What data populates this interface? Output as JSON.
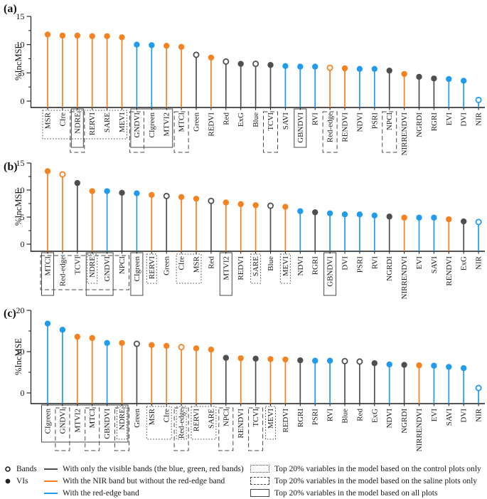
{
  "colors": {
    "visible": "#4F4F51",
    "nir": "#F58220",
    "rededge": "#219BEB",
    "axis": "#1a1a1a",
    "box_stroke": "#4a4a4a"
  },
  "legend": {
    "marker_items": [
      {
        "label": "Bands",
        "marker": "open"
      },
      {
        "label": "VIs",
        "marker": "filled"
      }
    ],
    "line_items": [
      {
        "label": "With only the visible bands (the blue, green, red bands)",
        "color_key": "visible"
      },
      {
        "label": "With the NIR band but without the red-edge band",
        "color_key": "nir"
      },
      {
        "label": "With the red-edge band",
        "color_key": "rededge"
      }
    ],
    "box_items": [
      {
        "label": "Top 20% variables in the model based on the control plots only",
        "style": "dotted"
      },
      {
        "label": "Top 20% variables in the model based on the saline plots only",
        "style": "dashed"
      },
      {
        "label": "Top 20% variables in the model based on all plots",
        "style": "solid"
      }
    ]
  },
  "chart_data": [
    {
      "type": "lollipop",
      "panel_label": "(a)",
      "ylabel": "%IncMSE",
      "ylim": [
        0,
        15
      ],
      "yticks": [
        0,
        5,
        10,
        15
      ],
      "yticks_minor": [
        2.5,
        7.5,
        12.5
      ],
      "items": [
        {
          "label": "MSR",
          "value": 11.8,
          "group": "nir",
          "marker": "filled"
        },
        {
          "label": "CIre",
          "value": 11.6,
          "group": "nir",
          "marker": "filled"
        },
        {
          "label": "NDRE",
          "value": 11.6,
          "group": "nir",
          "marker": "filled"
        },
        {
          "label": "RERVI",
          "value": 11.5,
          "group": "nir",
          "marker": "filled"
        },
        {
          "label": "SARE",
          "value": 11.5,
          "group": "nir",
          "marker": "filled"
        },
        {
          "label": "MEVI",
          "value": 11.3,
          "group": "nir",
          "marker": "filled"
        },
        {
          "label": "GNDVI",
          "value": 10.0,
          "group": "rededge",
          "marker": "filled"
        },
        {
          "label": "CIgreen",
          "value": 9.9,
          "group": "rededge",
          "marker": "filled"
        },
        {
          "label": "MTVI2",
          "value": 9.8,
          "group": "nir",
          "marker": "filled"
        },
        {
          "label": "MTCI",
          "value": 9.6,
          "group": "nir",
          "marker": "filled"
        },
        {
          "label": "Green",
          "value": 8.2,
          "group": "visible",
          "marker": "open"
        },
        {
          "label": "REDVI",
          "value": 7.7,
          "group": "nir",
          "marker": "filled"
        },
        {
          "label": "Red",
          "value": 7.0,
          "group": "visible",
          "marker": "open"
        },
        {
          "label": "ExG",
          "value": 6.6,
          "group": "visible",
          "marker": "filled"
        },
        {
          "label": "Blue",
          "value": 6.6,
          "group": "visible",
          "marker": "open"
        },
        {
          "label": "TCVI",
          "value": 6.4,
          "group": "visible",
          "marker": "filled"
        },
        {
          "label": "SAVI",
          "value": 6.2,
          "group": "rededge",
          "marker": "filled"
        },
        {
          "label": "GBNDVI",
          "value": 6.1,
          "group": "rededge",
          "marker": "filled"
        },
        {
          "label": "RVI",
          "value": 6.1,
          "group": "rededge",
          "marker": "filled"
        },
        {
          "label": "Red-edge",
          "value": 5.9,
          "group": "nir",
          "marker": "open"
        },
        {
          "label": "RENDVI",
          "value": 5.8,
          "group": "nir",
          "marker": "filled"
        },
        {
          "label": "NDVI",
          "value": 5.7,
          "group": "rededge",
          "marker": "filled"
        },
        {
          "label": "PSRI",
          "value": 5.7,
          "group": "rededge",
          "marker": "filled"
        },
        {
          "label": "NPCI",
          "value": 5.4,
          "group": "visible",
          "marker": "filled"
        },
        {
          "label": "NIRRENDVI",
          "value": 4.8,
          "group": "nir",
          "marker": "filled"
        },
        {
          "label": "NGRDI",
          "value": 4.3,
          "group": "visible",
          "marker": "filled"
        },
        {
          "label": "RGRI",
          "value": 4.0,
          "group": "visible",
          "marker": "filled"
        },
        {
          "label": "EVI",
          "value": 3.9,
          "group": "rededge",
          "marker": "filled"
        },
        {
          "label": "DVI",
          "value": 3.6,
          "group": "rededge",
          "marker": "filled"
        },
        {
          "label": "NIR",
          "value": 0.2,
          "group": "rededge",
          "marker": "open"
        }
      ],
      "top20_boxes": [
        {
          "style": "dotted",
          "from": 0,
          "to": 5
        },
        {
          "style": "solid",
          "from": 2,
          "to": 2
        },
        {
          "style": "dashed",
          "from": 2,
          "to": 2
        },
        {
          "style": "solid",
          "from": 6,
          "to": 8
        },
        {
          "style": "dashed",
          "from": 6,
          "to": 6
        },
        {
          "style": "dashed",
          "from": 9,
          "to": 9
        },
        {
          "style": "dashed",
          "from": 15,
          "to": 15
        },
        {
          "style": "solid",
          "from": 17,
          "to": 17
        },
        {
          "style": "dashed",
          "from": 19,
          "to": 19
        },
        {
          "style": "dashed",
          "from": 23,
          "to": 23
        }
      ]
    },
    {
      "type": "lollipop",
      "panel_label": "(b)",
      "ylabel": "%IncMSE",
      "ylim": [
        0,
        15
      ],
      "yticks": [
        0,
        5,
        10,
        15
      ],
      "yticks_minor": [
        2.5,
        7.5,
        12.5
      ],
      "items": [
        {
          "label": "MTCI",
          "value": 13.5,
          "group": "nir",
          "marker": "filled"
        },
        {
          "label": "Red-edge",
          "value": 12.9,
          "group": "nir",
          "marker": "open"
        },
        {
          "label": "TCVI",
          "value": 11.3,
          "group": "visible",
          "marker": "filled"
        },
        {
          "label": "NDRE",
          "value": 9.8,
          "group": "nir",
          "marker": "filled"
        },
        {
          "label": "GNDVI",
          "value": 9.8,
          "group": "rededge",
          "marker": "filled"
        },
        {
          "label": "NPCI",
          "value": 9.5,
          "group": "visible",
          "marker": "filled"
        },
        {
          "label": "CIgreen",
          "value": 9.4,
          "group": "rededge",
          "marker": "filled"
        },
        {
          "label": "RERVI",
          "value": 9.1,
          "group": "nir",
          "marker": "filled"
        },
        {
          "label": "Green",
          "value": 8.9,
          "group": "visible",
          "marker": "open"
        },
        {
          "label": "CIre",
          "value": 8.7,
          "group": "nir",
          "marker": "filled"
        },
        {
          "label": "MSR",
          "value": 8.4,
          "group": "nir",
          "marker": "filled"
        },
        {
          "label": "Red",
          "value": 8.0,
          "group": "visible",
          "marker": "open"
        },
        {
          "label": "MTVI2",
          "value": 7.7,
          "group": "nir",
          "marker": "filled"
        },
        {
          "label": "REDVI",
          "value": 7.4,
          "group": "nir",
          "marker": "filled"
        },
        {
          "label": "SARE",
          "value": 7.2,
          "group": "nir",
          "marker": "filled"
        },
        {
          "label": "Blue",
          "value": 7.1,
          "group": "visible",
          "marker": "open"
        },
        {
          "label": "MEVI",
          "value": 6.9,
          "group": "nir",
          "marker": "filled"
        },
        {
          "label": "NDVI",
          "value": 6.1,
          "group": "rededge",
          "marker": "filled"
        },
        {
          "label": "RGRI",
          "value": 5.9,
          "group": "visible",
          "marker": "filled"
        },
        {
          "label": "GBNDVI",
          "value": 5.7,
          "group": "rededge",
          "marker": "filled"
        },
        {
          "label": "DVI",
          "value": 5.5,
          "group": "rededge",
          "marker": "filled"
        },
        {
          "label": "PSRI",
          "value": 5.5,
          "group": "rededge",
          "marker": "filled"
        },
        {
          "label": "RVI",
          "value": 5.3,
          "group": "rededge",
          "marker": "filled"
        },
        {
          "label": "NGRDI",
          "value": 5.1,
          "group": "visible",
          "marker": "filled"
        },
        {
          "label": "NIRRENDVI",
          "value": 4.9,
          "group": "nir",
          "marker": "filled"
        },
        {
          "label": "EVI",
          "value": 4.9,
          "group": "rededge",
          "marker": "filled"
        },
        {
          "label": "SAVI",
          "value": 4.9,
          "group": "rededge",
          "marker": "filled"
        },
        {
          "label": "RENDVI",
          "value": 4.6,
          "group": "nir",
          "marker": "filled"
        },
        {
          "label": "ExG",
          "value": 4.2,
          "group": "visible",
          "marker": "filled"
        },
        {
          "label": "NIR",
          "value": 4.1,
          "group": "rededge",
          "marker": "open"
        }
      ],
      "top20_boxes": [
        {
          "style": "dashed",
          "from": 0,
          "to": 5
        },
        {
          "style": "solid",
          "from": 0,
          "to": 0
        },
        {
          "style": "dotted",
          "from": 3,
          "to": 3
        },
        {
          "style": "solid",
          "from": 3,
          "to": 4
        },
        {
          "style": "solid",
          "from": 6,
          "to": 6
        },
        {
          "style": "dotted",
          "from": 7,
          "to": 7
        },
        {
          "style": "dotted",
          "from": 9,
          "to": 10
        },
        {
          "style": "solid",
          "from": 12,
          "to": 12
        },
        {
          "style": "dotted",
          "from": 14,
          "to": 14
        },
        {
          "style": "dotted",
          "from": 16,
          "to": 16
        },
        {
          "style": "solid",
          "from": 19,
          "to": 19
        }
      ]
    },
    {
      "type": "lollipop",
      "panel_label": "(c)",
      "ylabel": "%IncMSE",
      "ylim": [
        0,
        20
      ],
      "yticks": [
        0,
        10,
        20
      ],
      "yticks_minor": [
        5,
        15
      ],
      "items": [
        {
          "label": "CIgreen",
          "value": 16.8,
          "group": "rededge",
          "marker": "filled"
        },
        {
          "label": "GNDVI",
          "value": 15.3,
          "group": "rededge",
          "marker": "filled"
        },
        {
          "label": "MTVI2",
          "value": 13.6,
          "group": "nir",
          "marker": "filled"
        },
        {
          "label": "MTCI",
          "value": 13.3,
          "group": "nir",
          "marker": "filled"
        },
        {
          "label": "GBNDVI",
          "value": 12.1,
          "group": "rededge",
          "marker": "filled"
        },
        {
          "label": "NDRE",
          "value": 12.1,
          "group": "nir",
          "marker": "filled"
        },
        {
          "label": "Green",
          "value": 11.9,
          "group": "visible",
          "marker": "open"
        },
        {
          "label": "MSR",
          "value": 11.6,
          "group": "nir",
          "marker": "filled"
        },
        {
          "label": "CIre",
          "value": 11.4,
          "group": "nir",
          "marker": "filled"
        },
        {
          "label": "Red-edge",
          "value": 11.1,
          "group": "nir",
          "marker": "open"
        },
        {
          "label": "RERVI",
          "value": 10.8,
          "group": "nir",
          "marker": "filled"
        },
        {
          "label": "SARE",
          "value": 10.5,
          "group": "nir",
          "marker": "filled"
        },
        {
          "label": "NPCI",
          "value": 8.5,
          "group": "visible",
          "marker": "filled"
        },
        {
          "label": "RENDVI",
          "value": 8.4,
          "group": "nir",
          "marker": "filled"
        },
        {
          "label": "TCVI",
          "value": 8.3,
          "group": "visible",
          "marker": "filled"
        },
        {
          "label": "MEVI",
          "value": 8.2,
          "group": "nir",
          "marker": "filled"
        },
        {
          "label": "REDVI",
          "value": 8.1,
          "group": "nir",
          "marker": "filled"
        },
        {
          "label": "RGRI",
          "value": 7.9,
          "group": "visible",
          "marker": "filled"
        },
        {
          "label": "PSRI",
          "value": 7.8,
          "group": "rededge",
          "marker": "filled"
        },
        {
          "label": "RVI",
          "value": 7.8,
          "group": "rededge",
          "marker": "filled"
        },
        {
          "label": "Blue",
          "value": 7.7,
          "group": "visible",
          "marker": "open"
        },
        {
          "label": "Red",
          "value": 7.6,
          "group": "visible",
          "marker": "open"
        },
        {
          "label": "ExG",
          "value": 7.2,
          "group": "visible",
          "marker": "filled"
        },
        {
          "label": "NDVI",
          "value": 6.9,
          "group": "rededge",
          "marker": "filled"
        },
        {
          "label": "NGRDI",
          "value": 6.8,
          "group": "visible",
          "marker": "filled"
        },
        {
          "label": "NIRRENDVI",
          "value": 6.7,
          "group": "nir",
          "marker": "filled"
        },
        {
          "label": "EVI",
          "value": 6.6,
          "group": "rededge",
          "marker": "filled"
        },
        {
          "label": "SAVI",
          "value": 6.3,
          "group": "rededge",
          "marker": "filled"
        },
        {
          "label": "DVI",
          "value": 6.0,
          "group": "rededge",
          "marker": "filled"
        },
        {
          "label": "NIR",
          "value": 1.2,
          "group": "rededge",
          "marker": "open"
        }
      ],
      "top20_boxes": [
        {
          "style": "solid",
          "from": 0,
          "to": 5
        },
        {
          "style": "dashed",
          "from": 1,
          "to": 1
        },
        {
          "style": "dashed",
          "from": 3,
          "to": 3
        },
        {
          "style": "dotted",
          "from": 5,
          "to": 5
        },
        {
          "style": "dashed",
          "from": 5,
          "to": 5
        },
        {
          "style": "dotted",
          "from": 7,
          "to": 8
        },
        {
          "style": "dotted",
          "from": 9,
          "to": 9
        },
        {
          "style": "dashed",
          "from": 9,
          "to": 9
        },
        {
          "style": "dotted",
          "from": 10,
          "to": 11
        },
        {
          "style": "dashed",
          "from": 12,
          "to": 12
        },
        {
          "style": "dashed",
          "from": 14,
          "to": 14
        },
        {
          "style": "dotted",
          "from": 15,
          "to": 15
        }
      ]
    }
  ]
}
